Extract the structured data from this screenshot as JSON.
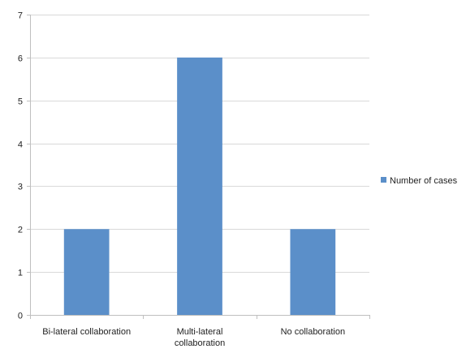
{
  "chart_data": {
    "type": "bar",
    "categories": [
      [
        "Bi-lateral collaboration"
      ],
      [
        "Multi-lateral",
        "collaboration"
      ],
      [
        "No collaboration"
      ]
    ],
    "series": [
      {
        "name": "Number of cases",
        "values": [
          2,
          6,
          2
        ]
      }
    ],
    "ylim": [
      0,
      7
    ],
    "yticks": [
      0,
      1,
      2,
      3,
      4,
      5,
      6,
      7
    ],
    "grid": true,
    "legend_position": "right",
    "colors": {
      "bar": "#5b8fc9",
      "grid": "#d9d9d9",
      "axis": "#bfbfbf"
    }
  }
}
